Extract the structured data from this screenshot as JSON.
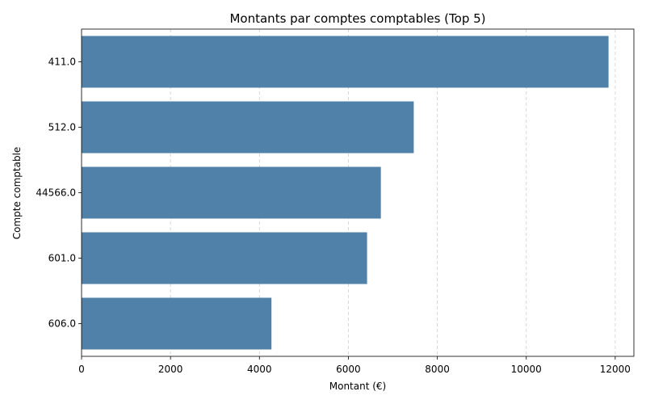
{
  "chart_data": {
    "type": "bar",
    "orientation": "horizontal",
    "title": "Montants par comptes comptables (Top 5)",
    "xlabel": "Montant (€)",
    "ylabel": "Compte comptable",
    "categories": [
      "411.0",
      "512.0",
      "44566.0",
      "601.0",
      "606.0"
    ],
    "values": [
      11850,
      7470,
      6730,
      6420,
      4270
    ],
    "xlim": [
      0,
      12420
    ],
    "xticks": [
      0,
      2000,
      4000,
      6000,
      8000,
      10000,
      12000
    ],
    "grid": "x-dashed",
    "bar_color": "#4f81a9",
    "grid_color": "#cfcfcf"
  }
}
